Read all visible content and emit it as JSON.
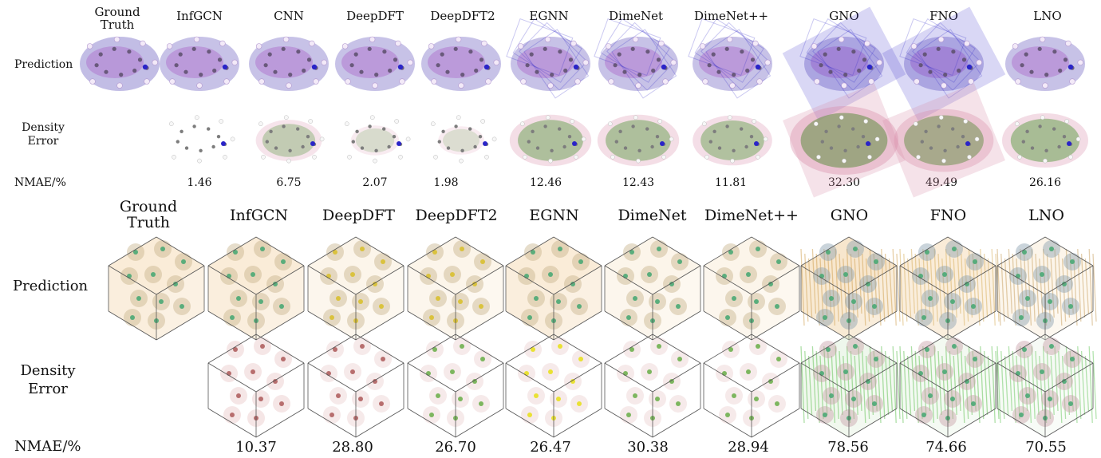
{
  "molecule_panel": {
    "header": {
      "ground_truth": "Ground Truth",
      "models": [
        "InfGCN",
        "CNN",
        "DeepDFT",
        "DeepDFT2",
        "EGNN",
        "DimeNet",
        "DimeNet++",
        "GNO",
        "FNO",
        "LNO"
      ]
    },
    "row_labels": {
      "prediction": "Prediction",
      "density_error": "Density Error",
      "nmae": "NMAE/%"
    },
    "nmae_values": [
      "1.46",
      "6.75",
      "2.07",
      "1.98",
      "12.46",
      "12.43",
      "11.81",
      "32.30",
      "49.49",
      "26.16"
    ]
  },
  "crystal_panel": {
    "header": {
      "ground_truth": "Ground Truth",
      "models": [
        "InfGCN",
        "DeepDFT",
        "DeepDFT2",
        "EGNN",
        "DimeNet",
        "DimeNet++",
        "GNO",
        "FNO",
        "LNO"
      ]
    },
    "row_labels": {
      "prediction": "Prediction",
      "density_error": "Density Error",
      "nmae": "NMAE/%"
    },
    "nmae_values": [
      "10.37",
      "28.80",
      "26.70",
      "26.47",
      "30.38",
      "28.94",
      "78.56",
      "74.66",
      "70.55"
    ]
  },
  "colors": {
    "density": "#8f86cf",
    "atom_purple": "#b07ad0",
    "atom_blue": "#2a24c8",
    "error_green": "#5e9c46",
    "error_pink": "#d88aa8",
    "crystal_density": "#f0c890",
    "crystal_node": "#4aa874",
    "cube_line": "#555555"
  }
}
